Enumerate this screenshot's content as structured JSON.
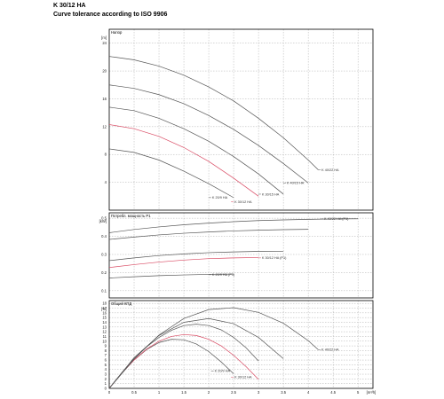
{
  "header": {
    "title": "K 30/12 HA",
    "subtitle": "Curve tolerance according to ISO 9906"
  },
  "chart_data": [
    {
      "type": "line",
      "name": "head",
      "title": "Напор",
      "ylabel": "[m]",
      "xlim": [
        0,
        5.3
      ],
      "ylim": [
        0,
        26
      ],
      "yticks": [
        4,
        8,
        12,
        16,
        20,
        24
      ],
      "xticks": [
        0,
        0.5,
        1,
        1.5,
        2,
        2.5,
        3,
        3.5,
        4,
        4.5,
        5
      ],
      "grid": true,
      "series": [
        {
          "name": "K 20/9 HA",
          "color": "#555555",
          "x": [
            0,
            0.5,
            1,
            1.5,
            2,
            2.5
          ],
          "values": [
            8.8,
            8.3,
            7.2,
            5.6,
            3.8,
            1.8
          ]
        },
        {
          "name": "K 30/12 HA",
          "color": "#d94a63",
          "x": [
            0,
            0.5,
            1,
            1.5,
            2,
            2.5,
            3
          ],
          "values": [
            12.3,
            11.7,
            10.6,
            9.0,
            7.0,
            4.6,
            2.0
          ]
        },
        {
          "name": "K 30/15 HA",
          "color": "#555555",
          "x": [
            0,
            0.5,
            1,
            1.5,
            2,
            2.5,
            3,
            3.5
          ],
          "values": [
            14.8,
            14.3,
            13.2,
            11.7,
            9.9,
            7.7,
            5.2,
            2.3
          ]
        },
        {
          "name": "K 40/15 HA",
          "color": "#555555",
          "x": [
            0,
            0.5,
            1,
            1.5,
            2,
            2.5,
            3,
            3.5,
            4
          ],
          "values": [
            18.0,
            17.5,
            16.6,
            15.3,
            13.6,
            11.6,
            9.3,
            6.7,
            3.9
          ]
        },
        {
          "name": "K 40/22 HA",
          "color": "#555555",
          "x": [
            0,
            0.5,
            1,
            1.5,
            2,
            2.5,
            3,
            3.5,
            4,
            4.2
          ],
          "values": [
            22.1,
            21.6,
            20.7,
            19.4,
            17.7,
            15.7,
            13.2,
            10.4,
            7.2,
            5.8
          ]
        }
      ],
      "annotations": [
        {
          "text": "K 20/9 HA",
          "x": 2.05,
          "y": 1.8,
          "color": "#555555"
        },
        {
          "text": "K 30/12 HA",
          "x": 2.5,
          "y": 1.2,
          "color": "#d94a63"
        },
        {
          "text": "K 30/15 HA",
          "x": 3.05,
          "y": 2.3,
          "color": "#555555"
        },
        {
          "text": "K 40/15 HA",
          "x": 3.55,
          "y": 3.9,
          "color": "#555555"
        },
        {
          "text": "K 40/22 HA",
          "x": 4.25,
          "y": 5.8,
          "color": "#555555"
        }
      ]
    },
    {
      "type": "line",
      "name": "power",
      "title": "Потребл. мощность P1",
      "ylabel": "[kW]",
      "xlim": [
        0,
        5.3
      ],
      "ylim": [
        0.06,
        0.53
      ],
      "yticks": [
        0.1,
        0.2,
        0.3,
        0.4,
        0.5
      ],
      "xticks": [
        0,
        0.5,
        1,
        1.5,
        2,
        2.5,
        3,
        3.5,
        4,
        4.5,
        5
      ],
      "grid": true,
      "series": [
        {
          "name": "K 20/9 HA (P1)",
          "color": "#555555",
          "x": [
            0,
            0.5,
            1,
            1.5,
            2,
            2.5
          ],
          "values": [
            0.17,
            0.177,
            0.183,
            0.187,
            0.19,
            0.192
          ]
        },
        {
          "name": "K 30/12 HA (P1)",
          "color": "#d94a63",
          "x": [
            0,
            0.5,
            1,
            1.5,
            2,
            2.5,
            3
          ],
          "values": [
            0.228,
            0.244,
            0.258,
            0.269,
            0.277,
            0.281,
            0.283
          ]
        },
        {
          "name": "K 30/15 HA",
          "color": "#555555",
          "x": [
            0,
            0.5,
            1,
            1.5,
            2,
            2.5,
            3,
            3.5
          ],
          "values": [
            0.266,
            0.281,
            0.294,
            0.303,
            0.31,
            0.314,
            0.317,
            0.318
          ]
        },
        {
          "name": "K 40/15 HA",
          "color": "#555555",
          "x": [
            0,
            0.5,
            1,
            1.5,
            2,
            2.5,
            3,
            3.5,
            4
          ],
          "values": [
            0.383,
            0.396,
            0.408,
            0.417,
            0.424,
            0.43,
            0.434,
            0.437,
            0.439
          ]
        },
        {
          "name": "K 40/22 HA (P1)",
          "color": "#555555",
          "x": [
            0,
            0.5,
            1,
            1.5,
            2,
            2.5,
            3,
            3.5,
            4,
            4.5,
            5
          ],
          "values": [
            0.42,
            0.438,
            0.452,
            0.464,
            0.473,
            0.481,
            0.487,
            0.491,
            0.494,
            0.496,
            0.497
          ]
        }
      ],
      "annotations": [
        {
          "text": "K 20/9 HA (P1)",
          "x": 2.05,
          "y": 0.188,
          "color": "#555555"
        },
        {
          "text": "K 30/12 HA (P1)",
          "x": 3.05,
          "y": 0.281,
          "color": "#d94a63"
        },
        {
          "text": "K 40/22 HA (P1)",
          "x": 4.3,
          "y": 0.496,
          "color": "#555555"
        }
      ]
    },
    {
      "type": "line",
      "name": "efficiency",
      "title": "Общий КПД",
      "ylabel": "[%]",
      "xlabel": "[m³/h]",
      "xlim": [
        0,
        5.3
      ],
      "ylim": [
        0,
        18.6
      ],
      "yticks": [
        0,
        1,
        2,
        3,
        4,
        5,
        6,
        7,
        8,
        9,
        10,
        11,
        12,
        13,
        14,
        15,
        16,
        17,
        18
      ],
      "xticks": [
        0,
        0.5,
        1,
        1.5,
        2,
        2.5,
        3,
        3.5,
        4,
        4.5,
        5
      ],
      "xticklabels": [
        "0",
        "0.5",
        "1",
        "1.5",
        "2",
        "2.5",
        "3",
        "3.5",
        "4",
        "4.5",
        "5"
      ],
      "grid": true,
      "series": [
        {
          "name": "K 20/9 HA",
          "color": "#555555",
          "x": [
            0,
            0.25,
            0.5,
            0.75,
            1,
            1.25,
            1.5,
            1.75,
            2,
            2.25,
            2.5
          ],
          "values": [
            0,
            3.2,
            6.0,
            8.2,
            9.7,
            10.4,
            10.3,
            9.4,
            7.8,
            5.6,
            3.1
          ]
        },
        {
          "name": "K 30/12 HA",
          "color": "#d94a63",
          "x": [
            0,
            0.25,
            0.5,
            0.75,
            1,
            1.25,
            1.5,
            1.75,
            2,
            2.25,
            2.5,
            2.75,
            3
          ],
          "values": [
            0,
            3.2,
            6.0,
            8.3,
            10.0,
            11.0,
            11.4,
            11.2,
            10.4,
            9.0,
            7.0,
            4.6,
            1.9
          ]
        },
        {
          "name": "K 30/15 HA",
          "color": "#555555",
          "x": [
            0,
            0.25,
            0.5,
            0.75,
            1,
            1.25,
            1.5,
            1.75,
            2,
            2.25,
            2.5,
            2.75,
            3
          ],
          "values": [
            0,
            3.3,
            6.3,
            8.8,
            10.8,
            12.3,
            13.3,
            13.6,
            13.3,
            12.4,
            10.8,
            8.6,
            5.8
          ]
        },
        {
          "name": "K 40/15 HA",
          "color": "#555555",
          "x": [
            0,
            0.5,
            1,
            1.5,
            2,
            2.5,
            3,
            3.5
          ],
          "values": [
            0,
            6.5,
            11.2,
            14.0,
            14.8,
            13.7,
            10.8,
            6.3
          ]
        },
        {
          "name": "K 40/22 HA",
          "color": "#555555",
          "x": [
            0,
            0.5,
            1,
            1.5,
            2,
            2.5,
            3,
            3.5,
            4,
            4.2
          ],
          "values": [
            0,
            6.2,
            11.3,
            14.8,
            16.7,
            17.1,
            16.1,
            13.8,
            10.1,
            8.2
          ]
        }
      ],
      "annotations": [
        {
          "text": "K 20/9 HA",
          "x": 2.1,
          "y": 3.7,
          "color": "#555555"
        },
        {
          "text": "K 30/12 HA",
          "x": 2.5,
          "y": 2.4,
          "color": "#d94a63"
        },
        {
          "text": "K 40/22 HA",
          "x": 4.25,
          "y": 8.2,
          "color": "#555555"
        }
      ]
    }
  ]
}
